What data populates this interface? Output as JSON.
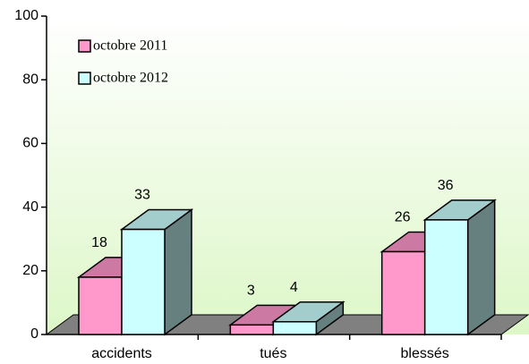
{
  "chart_data": {
    "type": "bar3d",
    "categories": [
      "accidents",
      "tués",
      "blessés"
    ],
    "series": [
      {
        "name": "octobre 2011",
        "color": "#ff99cc",
        "values": [
          18,
          3,
          26
        ]
      },
      {
        "name": "octobre 2012",
        "color": "#ccffff",
        "values": [
          33,
          4,
          36
        ]
      }
    ],
    "ylim": [
      0,
      100
    ],
    "yticks": [
      0,
      20,
      40,
      60,
      80,
      100
    ],
    "legend": "top-left"
  }
}
